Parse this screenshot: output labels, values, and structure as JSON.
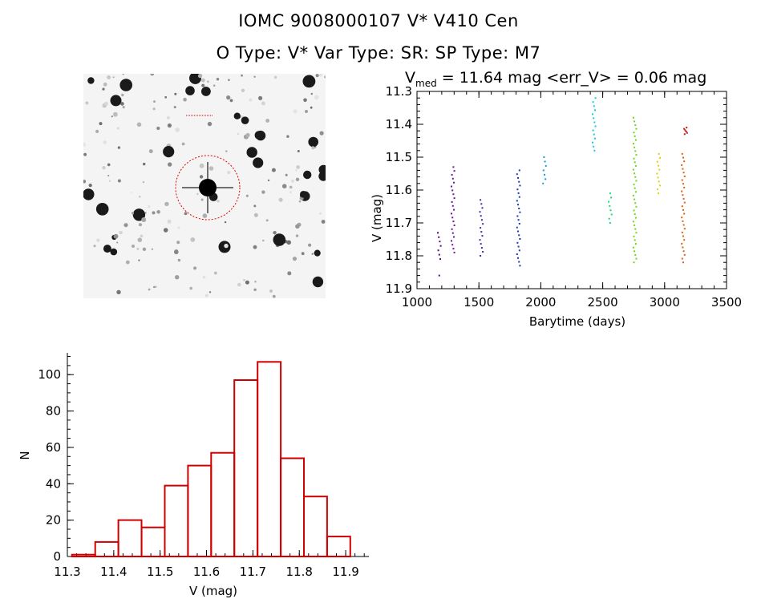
{
  "header": {
    "line1": "IOMC 9008000107     V* V410 Cen",
    "line2": "O Type: V*  Var Type: SR:  SP Type: M7"
  },
  "lightcurve": {
    "title_main": "V",
    "title_sub": "med",
    "title_rest": " = 11.64 mag <err_V> = 0.06 mag"
  },
  "colors": {
    "axis": "#000000",
    "histogram": "#d00000",
    "circle": "#e00000",
    "sky": "#f4f4f4"
  },
  "chart_data": [
    {
      "type": "scatter",
      "xlabel": "Barytime (days)",
      "ylabel": "V (mag)",
      "xlim": [
        1000,
        3500
      ],
      "ylim": [
        11.9,
        11.3
      ],
      "y_reversed": true,
      "xticks": [
        1000,
        1500,
        2000,
        2500,
        3000,
        3500
      ],
      "xtick_labels": [
        "1000",
        "1500",
        "2000",
        "2500",
        "3000",
        "3500"
      ],
      "yticks": [
        11.3,
        11.4,
        11.5,
        11.6,
        11.7,
        11.8,
        11.9
      ],
      "ytick_labels": [
        "11.3",
        "11.4",
        "11.5",
        "11.6",
        "11.7",
        "11.8",
        "11.9"
      ],
      "series": [
        {
          "x": 1180,
          "ymin": 11.73,
          "ymax": 11.81,
          "extra": [
            11.86
          ],
          "color": "#5a0a80"
        },
        {
          "x": 1290,
          "ymin": 11.53,
          "ymax": 11.79,
          "color": "#6a1aa0"
        },
        {
          "x": 1520,
          "ymin": 11.63,
          "ymax": 11.8,
          "color": "#4a2aa8"
        },
        {
          "x": 1820,
          "ymin": 11.54,
          "ymax": 11.83,
          "color": "#1a3ab8"
        },
        {
          "x": 2030,
          "ymin": 11.5,
          "ymax": 11.58,
          "color": "#1a9ad8"
        },
        {
          "x": 2430,
          "ymin": 11.32,
          "ymax": 11.48,
          "color": "#1ac8d8"
        },
        {
          "x": 2560,
          "ymin": 11.61,
          "ymax": 11.7,
          "color": "#1ad880"
        },
        {
          "x": 2760,
          "ymin": 11.38,
          "ymax": 11.82,
          "color": "#6ad820"
        },
        {
          "x": 2950,
          "ymin": 11.49,
          "ymax": 11.61,
          "color": "#e0d010"
        },
        {
          "x": 3150,
          "ymin": 11.49,
          "ymax": 11.82,
          "color": "#e06010"
        },
        {
          "x": 3170,
          "ymin": 11.41,
          "ymax": 11.43,
          "color": "#c01818"
        }
      ]
    },
    {
      "type": "bar",
      "xlabel": "V (mag)",
      "ylabel": "N",
      "xlim": [
        11.3,
        11.95
      ],
      "ylim": [
        0,
        112
      ],
      "xticks": [
        11.3,
        11.4,
        11.5,
        11.6,
        11.7,
        11.8,
        11.9
      ],
      "xtick_labels": [
        "11.3",
        "11.4",
        "11.5",
        "11.6",
        "11.7",
        "11.8",
        "11.9"
      ],
      "yticks": [
        0,
        20,
        40,
        60,
        80,
        100
      ],
      "ytick_labels": [
        "0",
        "20",
        "40",
        "60",
        "80",
        "100"
      ],
      "bin_edges": [
        11.31,
        11.36,
        11.41,
        11.46,
        11.51,
        11.56,
        11.61,
        11.66,
        11.71,
        11.76,
        11.81,
        11.86,
        11.91
      ],
      "values": [
        1,
        8,
        20,
        16,
        39,
        50,
        57,
        97,
        107,
        54,
        33,
        11,
        2
      ]
    }
  ]
}
